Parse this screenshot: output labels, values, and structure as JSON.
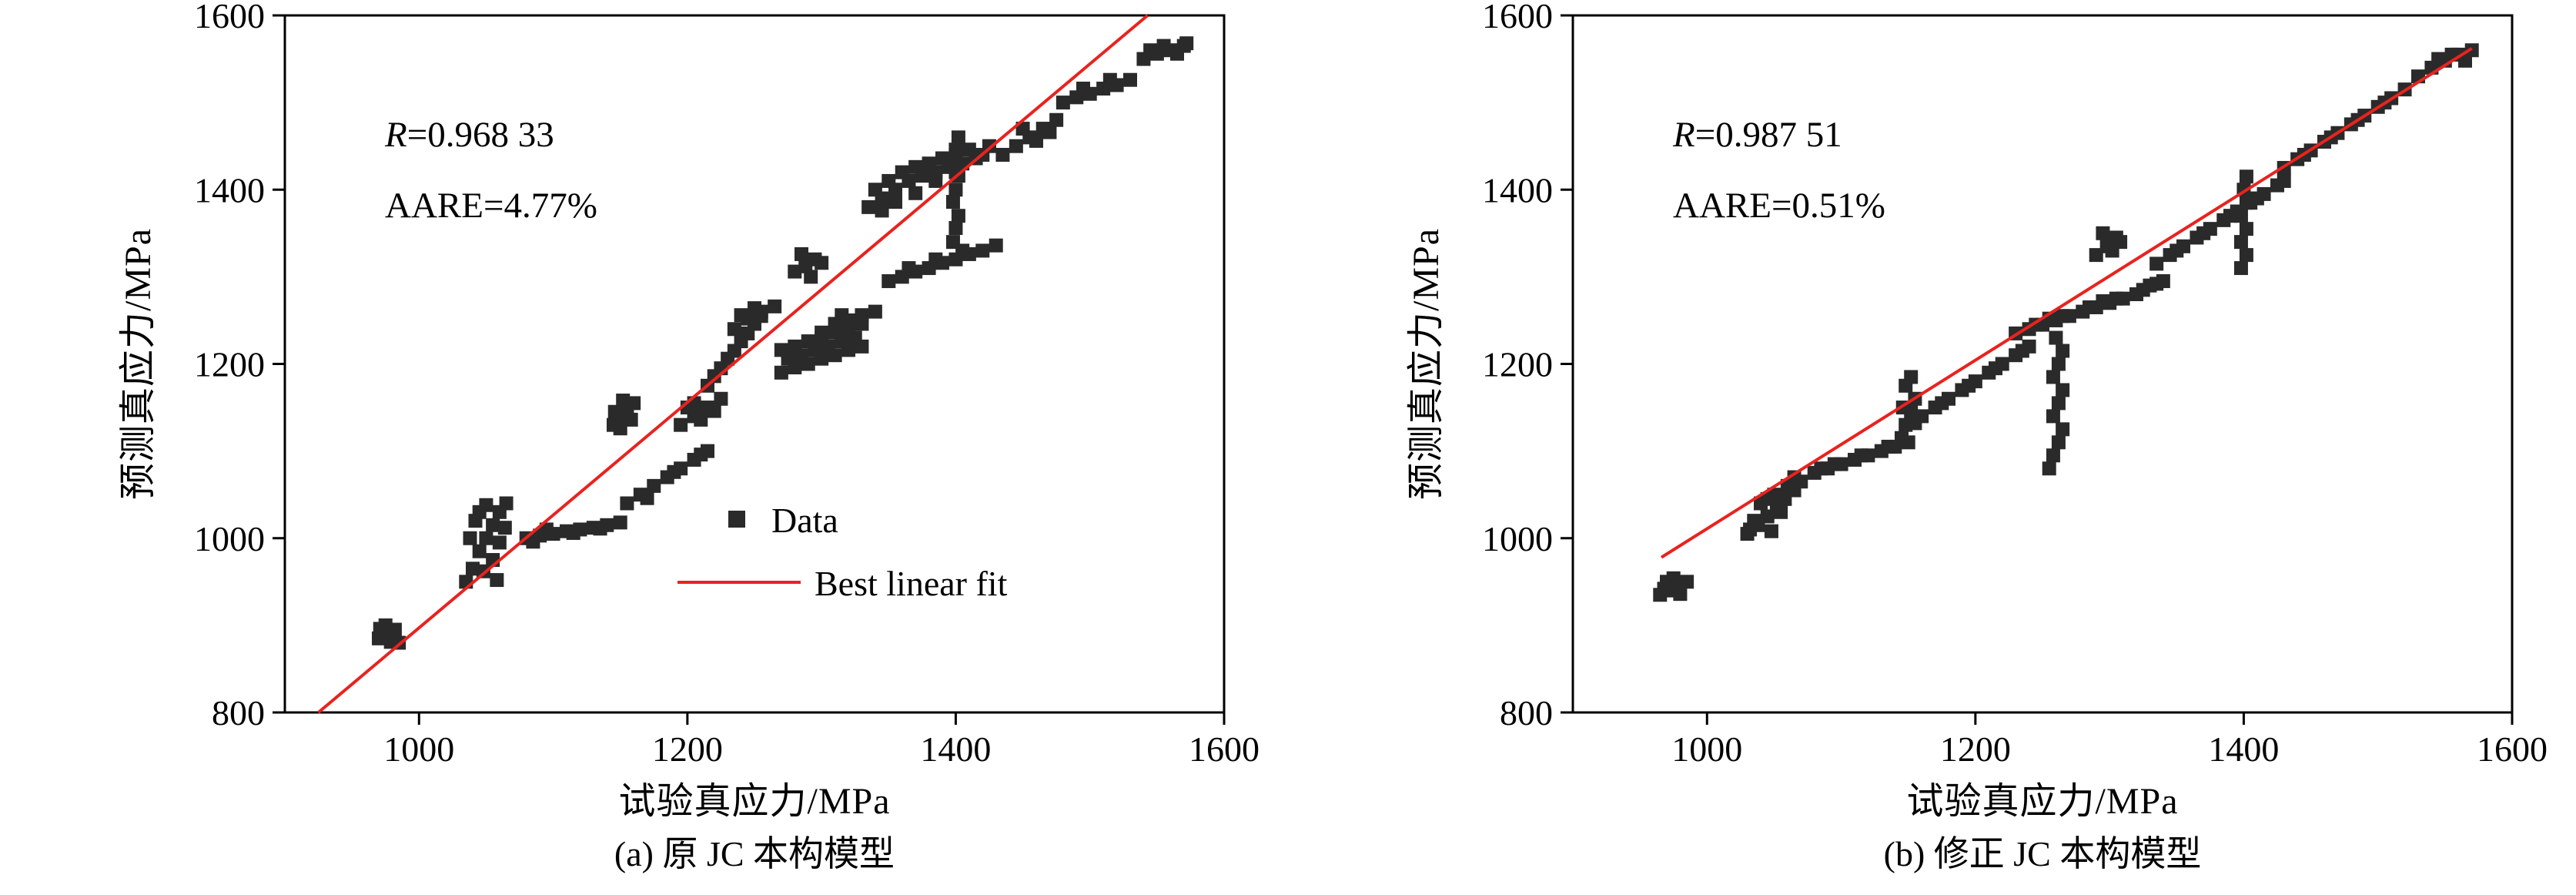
{
  "page": {
    "background": "#ffffff"
  },
  "chart_data": [
    {
      "type": "scatter",
      "caption": "(a) 原 JC 本构模型",
      "xlabel": "试验真应力/MPa",
      "ylabel": "预测真应力/MPa",
      "xlim": [
        900,
        1600
      ],
      "ylim": [
        800,
        1600
      ],
      "xticks": [
        1000,
        1200,
        1400,
        1600
      ],
      "yticks": [
        800,
        1000,
        1200,
        1400,
        1600
      ],
      "annotations": [
        {
          "prefix_italic": "R",
          "text": "=0.968 33"
        },
        {
          "prefix_italic": "",
          "text": "AARE=4.77%"
        }
      ],
      "legend": {
        "items": [
          {
            "type": "marker",
            "label": "Data"
          },
          {
            "type": "line",
            "label": "Best linear fit"
          }
        ]
      },
      "fit_line": {
        "x1": 925,
        "y1": 800,
        "x2": 1543,
        "y2": 1600
      },
      "line_color": "#e8231f",
      "marker_color": "#2a2a2a",
      "marker_size_px": 18,
      "points": [
        [
          970,
          885
        ],
        [
          978,
          892
        ],
        [
          985,
          880
        ],
        [
          975,
          900
        ],
        [
          982,
          895
        ],
        [
          971,
          896
        ],
        [
          979,
          881
        ],
        [
          1035,
          950
        ],
        [
          1040,
          965
        ],
        [
          1045,
          985
        ],
        [
          1050,
          1000
        ],
        [
          1055,
          1015
        ],
        [
          1060,
          1030
        ],
        [
          1065,
          1040
        ],
        [
          1050,
          1038
        ],
        [
          1042,
          1020
        ],
        [
          1038,
          1000
        ],
        [
          1048,
          962
        ],
        [
          1055,
          975
        ],
        [
          1060,
          995
        ],
        [
          1045,
          1030
        ],
        [
          1064,
          1012
        ],
        [
          1058,
          952
        ],
        [
          1080,
          1000
        ],
        [
          1090,
          1003
        ],
        [
          1100,
          1005
        ],
        [
          1110,
          1008
        ],
        [
          1120,
          1010
        ],
        [
          1130,
          1012
        ],
        [
          1140,
          1015
        ],
        [
          1150,
          1018
        ],
        [
          1095,
          1010
        ],
        [
          1115,
          1006
        ],
        [
          1135,
          1011
        ],
        [
          1085,
          996
        ],
        [
          1145,
          1130
        ],
        [
          1150,
          1140
        ],
        [
          1155,
          1150
        ],
        [
          1160,
          1155
        ],
        [
          1150,
          1126
        ],
        [
          1158,
          1136
        ],
        [
          1146,
          1145
        ],
        [
          1152,
          1158
        ],
        [
          1155,
          1040
        ],
        [
          1165,
          1050
        ],
        [
          1175,
          1060
        ],
        [
          1185,
          1070
        ],
        [
          1195,
          1080
        ],
        [
          1205,
          1090
        ],
        [
          1215,
          1100
        ],
        [
          1170,
          1046
        ],
        [
          1190,
          1076
        ],
        [
          1210,
          1096
        ],
        [
          1195,
          1130
        ],
        [
          1205,
          1140
        ],
        [
          1215,
          1150
        ],
        [
          1225,
          1160
        ],
        [
          1200,
          1150
        ],
        [
          1210,
          1136
        ],
        [
          1220,
          1146
        ],
        [
          1205,
          1155
        ],
        [
          1215,
          1175
        ],
        [
          1225,
          1195
        ],
        [
          1235,
          1215
        ],
        [
          1245,
          1235
        ],
        [
          1255,
          1255
        ],
        [
          1240,
          1226
        ],
        [
          1250,
          1246
        ],
        [
          1230,
          1206
        ],
        [
          1220,
          1186
        ],
        [
          1235,
          1240
        ],
        [
          1245,
          1252
        ],
        [
          1255,
          1260
        ],
        [
          1265,
          1266
        ],
        [
          1250,
          1264
        ],
        [
          1240,
          1256
        ],
        [
          1270,
          1190
        ],
        [
          1280,
          1196
        ],
        [
          1290,
          1200
        ],
        [
          1300,
          1206
        ],
        [
          1310,
          1210
        ],
        [
          1320,
          1216
        ],
        [
          1330,
          1220
        ],
        [
          1275,
          1206
        ],
        [
          1285,
          1210
        ],
        [
          1295,
          1216
        ],
        [
          1305,
          1220
        ],
        [
          1315,
          1226
        ],
        [
          1325,
          1230
        ],
        [
          1280,
          1220
        ],
        [
          1290,
          1226
        ],
        [
          1300,
          1230
        ],
        [
          1310,
          1236
        ],
        [
          1270,
          1216
        ],
        [
          1320,
          1240
        ],
        [
          1330,
          1246
        ],
        [
          1280,
          1306
        ],
        [
          1288,
          1312
        ],
        [
          1295,
          1320
        ],
        [
          1285,
          1326
        ],
        [
          1292,
          1300
        ],
        [
          1300,
          1316
        ],
        [
          1300,
          1236
        ],
        [
          1310,
          1246
        ],
        [
          1320,
          1250
        ],
        [
          1330,
          1256
        ],
        [
          1340,
          1260
        ],
        [
          1315,
          1256
        ],
        [
          1335,
          1380
        ],
        [
          1345,
          1390
        ],
        [
          1355,
          1400
        ],
        [
          1365,
          1410
        ],
        [
          1375,
          1416
        ],
        [
          1385,
          1420
        ],
        [
          1395,
          1426
        ],
        [
          1405,
          1430
        ],
        [
          1415,
          1436
        ],
        [
          1340,
          1400
        ],
        [
          1350,
          1410
        ],
        [
          1360,
          1420
        ],
        [
          1370,
          1426
        ],
        [
          1380,
          1430
        ],
        [
          1390,
          1436
        ],
        [
          1400,
          1440
        ],
        [
          1355,
          1386
        ],
        [
          1370,
          1396
        ],
        [
          1385,
          1410
        ],
        [
          1400,
          1420
        ],
        [
          1345,
          1376
        ],
        [
          1410,
          1446
        ],
        [
          1420,
          1440
        ],
        [
          1425,
          1450
        ],
        [
          1350,
          1295
        ],
        [
          1360,
          1300
        ],
        [
          1370,
          1306
        ],
        [
          1380,
          1310
        ],
        [
          1390,
          1316
        ],
        [
          1400,
          1320
        ],
        [
          1410,
          1326
        ],
        [
          1420,
          1330
        ],
        [
          1430,
          1336
        ],
        [
          1365,
          1310
        ],
        [
          1385,
          1320
        ],
        [
          1405,
          1330
        ],
        [
          1398,
          1340
        ],
        [
          1400,
          1356
        ],
        [
          1402,
          1370
        ],
        [
          1398,
          1386
        ],
        [
          1400,
          1400
        ],
        [
          1402,
          1416
        ],
        [
          1398,
          1430
        ],
        [
          1400,
          1446
        ],
        [
          1402,
          1460
        ],
        [
          1435,
          1440
        ],
        [
          1445,
          1450
        ],
        [
          1455,
          1460
        ],
        [
          1465,
          1470
        ],
        [
          1475,
          1480
        ],
        [
          1450,
          1470
        ],
        [
          1460,
          1456
        ],
        [
          1470,
          1466
        ],
        [
          1480,
          1500
        ],
        [
          1490,
          1506
        ],
        [
          1500,
          1510
        ],
        [
          1510,
          1516
        ],
        [
          1520,
          1520
        ],
        [
          1530,
          1526
        ],
        [
          1495,
          1516
        ],
        [
          1515,
          1526
        ],
        [
          1540,
          1550
        ],
        [
          1550,
          1556
        ],
        [
          1560,
          1560
        ],
        [
          1570,
          1565
        ],
        [
          1555,
          1565
        ],
        [
          1565,
          1556
        ],
        [
          1545,
          1560
        ],
        [
          1572,
          1568
        ]
      ]
    },
    {
      "type": "scatter",
      "caption": "(b) 修正 JC 本构模型",
      "xlabel": "试验真应力/MPa",
      "ylabel": "预测真应力/MPa",
      "xlim": [
        900,
        1600
      ],
      "ylim": [
        800,
        1600
      ],
      "xticks": [
        1000,
        1200,
        1400,
        1600
      ],
      "yticks": [
        800,
        1000,
        1200,
        1400,
        1600
      ],
      "annotations": [
        {
          "prefix_italic": "R",
          "text": "=0.987 51"
        },
        {
          "prefix_italic": "",
          "text": "AARE=0.51%"
        }
      ],
      "legend": null,
      "fit_line": {
        "x1": 966,
        "y1": 978,
        "x2": 1570,
        "y2": 1562
      },
      "line_color": "#e8231f",
      "marker_color": "#2a2a2a",
      "marker_size_px": 18,
      "points": [
        [
          965,
          935
        ],
        [
          972,
          940
        ],
        [
          978,
          945
        ],
        [
          985,
          950
        ],
        [
          970,
          950
        ],
        [
          980,
          936
        ],
        [
          975,
          954
        ],
        [
          968,
          942
        ],
        [
          1030,
          1005
        ],
        [
          1038,
          1015
        ],
        [
          1045,
          1025
        ],
        [
          1052,
          1035
        ],
        [
          1058,
          1045
        ],
        [
          1065,
          1055
        ],
        [
          1070,
          1065
        ],
        [
          1040,
          1040
        ],
        [
          1050,
          1050
        ],
        [
          1060,
          1060
        ],
        [
          1035,
          1020
        ],
        [
          1045,
          1045
        ],
        [
          1055,
          1030
        ],
        [
          1065,
          1070
        ],
        [
          1032,
          1010
        ],
        [
          1048,
          1008
        ],
        [
          1080,
          1075
        ],
        [
          1090,
          1080
        ],
        [
          1100,
          1085
        ],
        [
          1110,
          1090
        ],
        [
          1120,
          1095
        ],
        [
          1130,
          1100
        ],
        [
          1140,
          1105
        ],
        [
          1150,
          1110
        ],
        [
          1095,
          1085
        ],
        [
          1115,
          1095
        ],
        [
          1135,
          1105
        ],
        [
          1085,
          1080
        ],
        [
          1145,
          1115
        ],
        [
          1148,
          1130
        ],
        [
          1152,
          1145
        ],
        [
          1155,
          1160
        ],
        [
          1148,
          1175
        ],
        [
          1152,
          1185
        ],
        [
          1146,
          1150
        ],
        [
          1155,
          1132
        ],
        [
          1160,
          1140
        ],
        [
          1170,
          1150
        ],
        [
          1180,
          1160
        ],
        [
          1190,
          1170
        ],
        [
          1200,
          1180
        ],
        [
          1210,
          1190
        ],
        [
          1220,
          1200
        ],
        [
          1230,
          1210
        ],
        [
          1240,
          1220
        ],
        [
          1175,
          1155
        ],
        [
          1195,
          1175
        ],
        [
          1215,
          1195
        ],
        [
          1235,
          1215
        ],
        [
          1255,
          1080
        ],
        [
          1258,
          1095
        ],
        [
          1262,
          1110
        ],
        [
          1265,
          1125
        ],
        [
          1258,
          1140
        ],
        [
          1262,
          1155
        ],
        [
          1265,
          1170
        ],
        [
          1258,
          1185
        ],
        [
          1262,
          1200
        ],
        [
          1265,
          1215
        ],
        [
          1260,
          1230
        ],
        [
          1230,
          1235
        ],
        [
          1240,
          1240
        ],
        [
          1250,
          1245
        ],
        [
          1260,
          1250
        ],
        [
          1270,
          1255
        ],
        [
          1280,
          1260
        ],
        [
          1290,
          1265
        ],
        [
          1300,
          1270
        ],
        [
          1310,
          1275
        ],
        [
          1320,
          1280
        ],
        [
          1330,
          1290
        ],
        [
          1245,
          1245
        ],
        [
          1265,
          1255
        ],
        [
          1285,
          1265
        ],
        [
          1305,
          1275
        ],
        [
          1325,
          1285
        ],
        [
          1340,
          1295
        ],
        [
          1255,
          1252
        ],
        [
          1295,
          1272
        ],
        [
          1335,
          1292
        ],
        [
          1290,
          1325
        ],
        [
          1298,
          1335
        ],
        [
          1305,
          1345
        ],
        [
          1295,
          1350
        ],
        [
          1302,
          1330
        ],
        [
          1308,
          1340
        ],
        [
          1335,
          1315
        ],
        [
          1345,
          1325
        ],
        [
          1355,
          1335
        ],
        [
          1365,
          1345
        ],
        [
          1375,
          1355
        ],
        [
          1385,
          1365
        ],
        [
          1395,
          1375
        ],
        [
          1405,
          1385
        ],
        [
          1415,
          1395
        ],
        [
          1425,
          1405
        ],
        [
          1350,
          1330
        ],
        [
          1370,
          1350
        ],
        [
          1390,
          1370
        ],
        [
          1410,
          1390
        ],
        [
          1430,
          1410
        ],
        [
          1398,
          1310
        ],
        [
          1402,
          1325
        ],
        [
          1398,
          1340
        ],
        [
          1402,
          1355
        ],
        [
          1398,
          1370
        ],
        [
          1402,
          1385
        ],
        [
          1400,
          1400
        ],
        [
          1402,
          1415
        ],
        [
          1430,
          1425
        ],
        [
          1440,
          1435
        ],
        [
          1450,
          1445
        ],
        [
          1460,
          1455
        ],
        [
          1470,
          1465
        ],
        [
          1480,
          1475
        ],
        [
          1490,
          1485
        ],
        [
          1500,
          1495
        ],
        [
          1510,
          1505
        ],
        [
          1520,
          1515
        ],
        [
          1445,
          1440
        ],
        [
          1465,
          1460
        ],
        [
          1485,
          1480
        ],
        [
          1505,
          1500
        ],
        [
          1530,
          1530
        ],
        [
          1540,
          1540
        ],
        [
          1550,
          1548
        ],
        [
          1560,
          1555
        ],
        [
          1570,
          1560
        ],
        [
          1545,
          1550
        ],
        [
          1555,
          1555
        ],
        [
          1565,
          1548
        ]
      ]
    }
  ]
}
